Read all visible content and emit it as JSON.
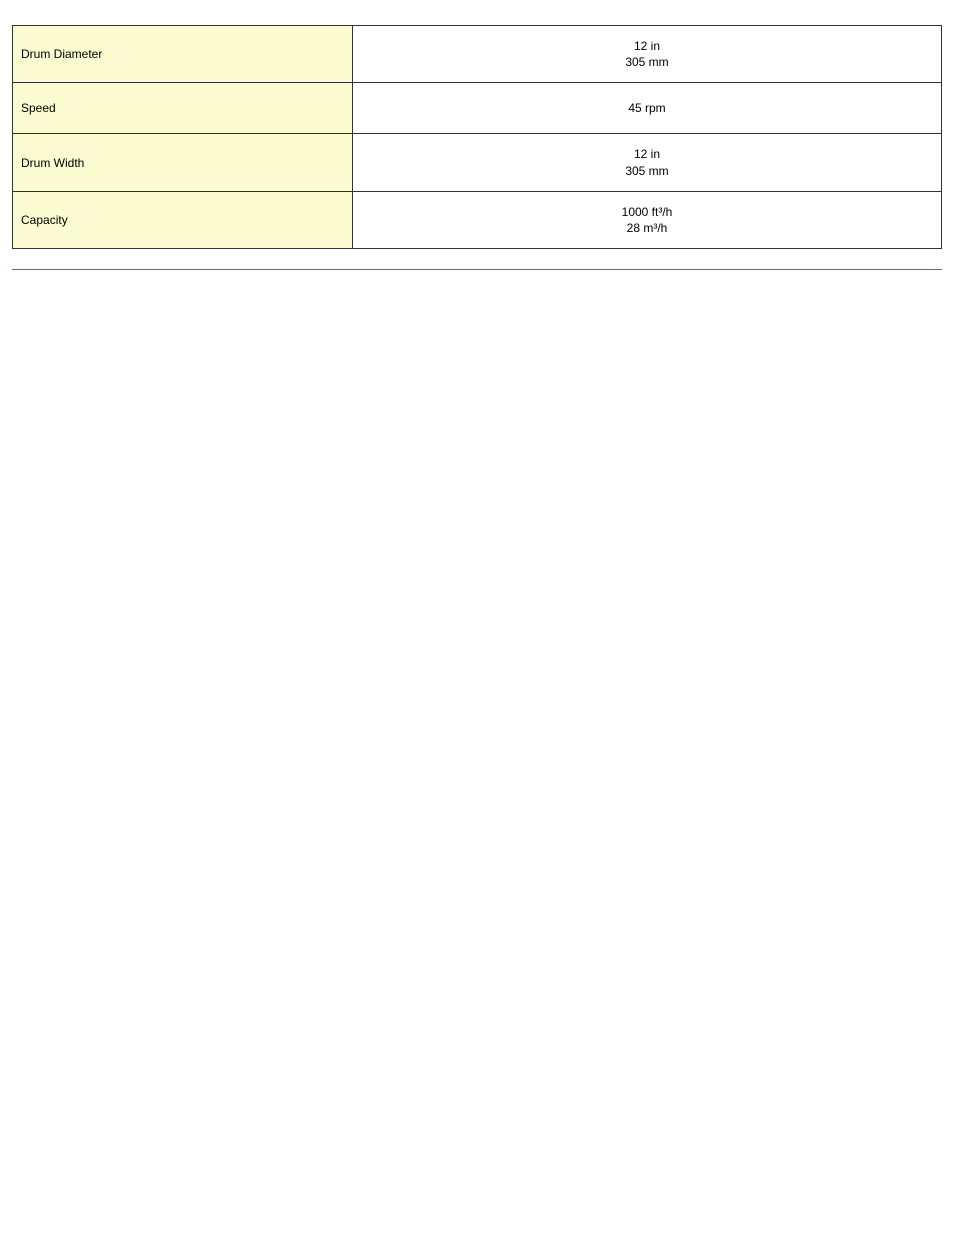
{
  "table": {
    "label_bg": "#fafbd0",
    "value_bg": "#ffffff",
    "border_color": "#333333",
    "rows": [
      {
        "label": "Drum Diameter",
        "values": [
          "12 in",
          "305 mm"
        ]
      },
      {
        "label": "Speed",
        "values": [
          "45 rpm"
        ]
      },
      {
        "label": "Drum Width",
        "values": [
          "12 in",
          "305 mm"
        ]
      },
      {
        "label": "Capacity",
        "values": [
          "1000 ft³/h",
          "28 m³/h"
        ]
      }
    ]
  },
  "separator_color": "#4a7a7a"
}
